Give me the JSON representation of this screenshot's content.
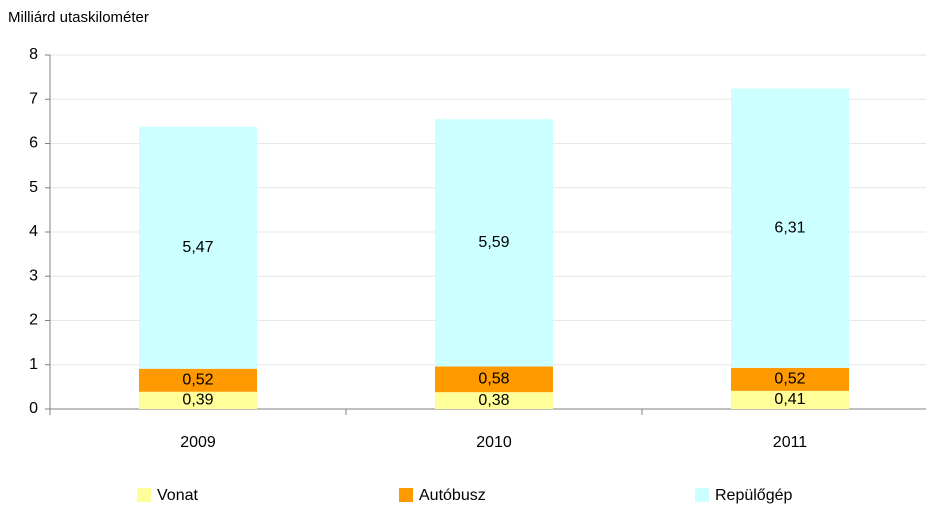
{
  "chart_data": {
    "type": "stacked_bar",
    "y_axis_label": "Milliárd utaskilométer",
    "categories": [
      "2009",
      "2010",
      "2011"
    ],
    "series": [
      {
        "name": "Vonat",
        "color": "#ffff99",
        "values": [
          0.39,
          0.38,
          0.41
        ],
        "value_labels": [
          "0,39",
          "0,38",
          "0,41"
        ]
      },
      {
        "name": "Autóbusz",
        "color": "#ff9900",
        "values": [
          0.52,
          0.58,
          0.52
        ],
        "value_labels": [
          "0,52",
          "0,58",
          "0,52"
        ]
      },
      {
        "name": "Repülőgép",
        "color": "#ccffff",
        "values": [
          5.47,
          5.59,
          6.31
        ],
        "value_labels": [
          "5,47",
          "5,59",
          "6,31"
        ]
      }
    ],
    "ylim": [
      0,
      8
    ],
    "yticks": [
      0,
      1,
      2,
      3,
      4,
      5,
      6,
      7,
      8
    ],
    "grid": true,
    "legend": "bottom"
  }
}
